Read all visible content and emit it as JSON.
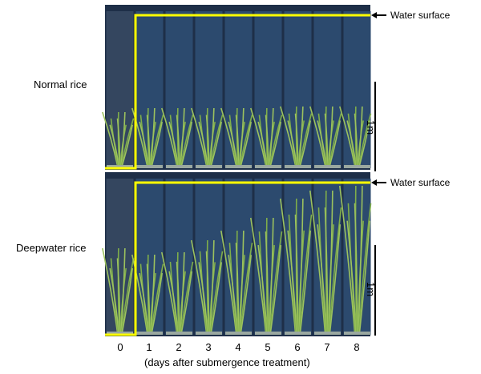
{
  "rows": [
    {
      "label": "Normal rice",
      "water_label": "Water surface",
      "scale_label": "1m"
    },
    {
      "label": "Deepwater rice",
      "water_label": "Water surface",
      "scale_label": "1m"
    }
  ],
  "days": [
    "0",
    "1",
    "2",
    "3",
    "4",
    "5",
    "6",
    "7",
    "8"
  ],
  "caption": "(days after submergence treatment)",
  "colors": {
    "water_line": "#ffff00",
    "tank": "#2c4a6e",
    "plant": "#7fae4a"
  }
}
